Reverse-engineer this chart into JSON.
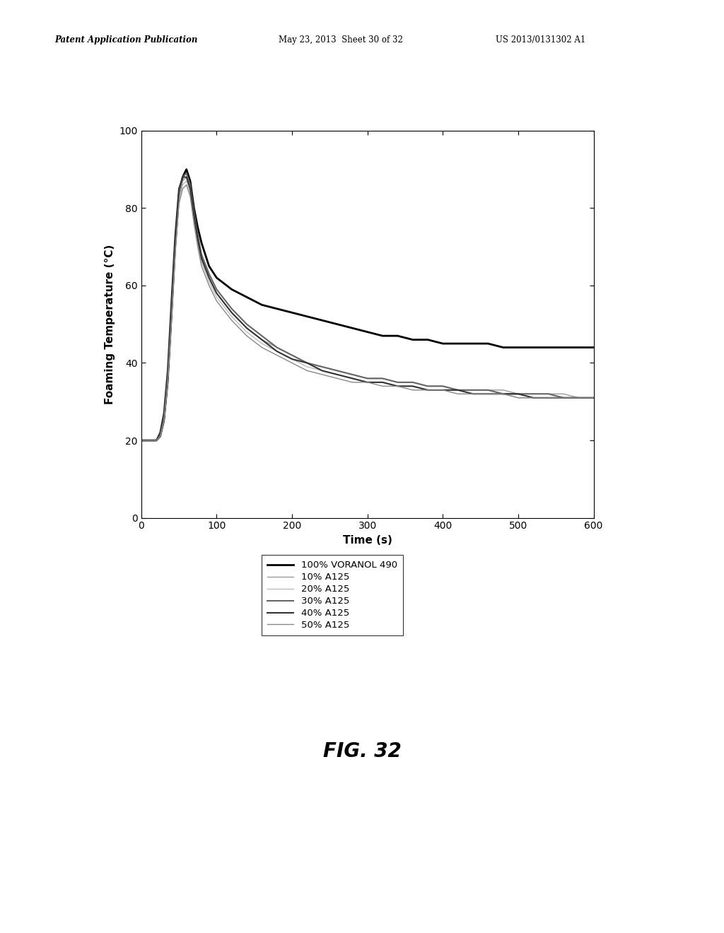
{
  "xlabel": "Time (s)",
  "ylabel": "Foaming Temperature (°C)",
  "xlim": [
    0,
    600
  ],
  "ylim": [
    0,
    100
  ],
  "xticks": [
    0,
    100,
    200,
    300,
    400,
    500,
    600
  ],
  "yticks": [
    0,
    20,
    40,
    60,
    80,
    100
  ],
  "header_left": "Patent Application Publication",
  "header_mid": "May 23, 2013  Sheet 30 of 32",
  "header_right": "US 2013/0131302 A1",
  "fig_label": "FIG. 32",
  "legend_entries": [
    {
      "label": "100% VORANOL 490",
      "color": "#000000",
      "lw": 2.0
    },
    {
      "label": "10% A125",
      "color": "#999999",
      "lw": 1.0
    },
    {
      "label": "20% A125",
      "color": "#bbbbbb",
      "lw": 1.0
    },
    {
      "label": "30% A125",
      "color": "#666666",
      "lw": 1.5
    },
    {
      "label": "40% A125",
      "color": "#333333",
      "lw": 1.5
    },
    {
      "label": "50% A125",
      "color": "#888888",
      "lw": 1.0
    }
  ],
  "background_color": "#ffffff",
  "series": [
    {
      "label": "100% VORANOL 490",
      "color": "#000000",
      "lw": 2.0,
      "t": [
        0,
        5,
        10,
        15,
        20,
        25,
        30,
        35,
        40,
        45,
        50,
        55,
        60,
        65,
        70,
        75,
        80,
        90,
        100,
        120,
        140,
        160,
        180,
        200,
        220,
        240,
        260,
        280,
        300,
        320,
        340,
        360,
        380,
        400,
        420,
        440,
        460,
        480,
        500,
        520,
        540,
        560,
        580,
        600
      ],
      "y": [
        20,
        20,
        20,
        20,
        20,
        21,
        25,
        35,
        52,
        70,
        83,
        88,
        90,
        87,
        80,
        75,
        71,
        65,
        62,
        59,
        57,
        55,
        54,
        53,
        52,
        51,
        50,
        49,
        48,
        47,
        47,
        46,
        46,
        45,
        45,
        45,
        45,
        44,
        44,
        44,
        44,
        44,
        44,
        44
      ]
    },
    {
      "label": "10% A125",
      "color": "#999999",
      "lw": 1.0,
      "t": [
        0,
        5,
        10,
        15,
        20,
        25,
        30,
        35,
        40,
        45,
        50,
        55,
        60,
        65,
        70,
        75,
        80,
        90,
        100,
        120,
        140,
        160,
        180,
        200,
        220,
        240,
        260,
        280,
        300,
        320,
        340,
        360,
        380,
        400,
        420,
        440,
        460,
        480,
        500,
        520,
        540,
        560,
        580,
        600
      ],
      "y": [
        20,
        20,
        20,
        20,
        20,
        21,
        25,
        35,
        52,
        70,
        83,
        87,
        88,
        85,
        78,
        72,
        67,
        62,
        58,
        53,
        49,
        46,
        44,
        42,
        40,
        39,
        38,
        37,
        36,
        36,
        35,
        35,
        34,
        34,
        33,
        33,
        33,
        33,
        32,
        32,
        32,
        32,
        31,
        31
      ]
    },
    {
      "label": "20% A125",
      "color": "#bbbbbb",
      "lw": 1.0,
      "t": [
        0,
        5,
        10,
        15,
        20,
        25,
        30,
        35,
        40,
        45,
        50,
        55,
        60,
        65,
        70,
        75,
        80,
        90,
        100,
        120,
        140,
        160,
        180,
        200,
        220,
        240,
        260,
        280,
        300,
        320,
        340,
        360,
        380,
        400,
        420,
        440,
        460,
        480,
        500,
        520,
        540,
        560,
        580,
        600
      ],
      "y": [
        20,
        20,
        20,
        20,
        20,
        21,
        25,
        35,
        52,
        69,
        82,
        86,
        87,
        84,
        77,
        71,
        66,
        61,
        57,
        52,
        48,
        45,
        43,
        41,
        39,
        38,
        37,
        36,
        35,
        35,
        34,
        34,
        33,
        33,
        33,
        32,
        32,
        32,
        31,
        31,
        31,
        31,
        31,
        31
      ]
    },
    {
      "label": "30% A125",
      "color": "#666666",
      "lw": 1.5,
      "t": [
        0,
        5,
        10,
        15,
        20,
        25,
        30,
        35,
        40,
        45,
        50,
        55,
        60,
        65,
        70,
        75,
        80,
        90,
        100,
        120,
        140,
        160,
        180,
        200,
        220,
        240,
        260,
        280,
        300,
        320,
        340,
        360,
        380,
        400,
        420,
        440,
        460,
        480,
        500,
        520,
        540,
        560,
        580,
        600
      ],
      "y": [
        20,
        20,
        20,
        20,
        20,
        21,
        25,
        36,
        53,
        71,
        84,
        88,
        89,
        86,
        79,
        73,
        68,
        63,
        59,
        54,
        50,
        47,
        44,
        42,
        40,
        39,
        38,
        37,
        36,
        36,
        35,
        35,
        34,
        34,
        33,
        33,
        33,
        32,
        32,
        32,
        32,
        31,
        31,
        31
      ]
    },
    {
      "label": "40% A125",
      "color": "#333333",
      "lw": 1.5,
      "t": [
        0,
        5,
        10,
        15,
        20,
        25,
        30,
        35,
        40,
        45,
        50,
        55,
        60,
        65,
        70,
        75,
        80,
        90,
        100,
        120,
        140,
        160,
        180,
        200,
        220,
        240,
        260,
        280,
        300,
        320,
        340,
        360,
        380,
        400,
        420,
        440,
        460,
        480,
        500,
        520,
        540,
        560,
        580,
        600
      ],
      "y": [
        20,
        20,
        20,
        20,
        20,
        22,
        27,
        38,
        56,
        73,
        85,
        88,
        88,
        85,
        78,
        72,
        67,
        62,
        58,
        53,
        49,
        46,
        43,
        41,
        40,
        38,
        37,
        36,
        35,
        35,
        34,
        34,
        33,
        33,
        33,
        32,
        32,
        32,
        32,
        31,
        31,
        31,
        31,
        31
      ]
    },
    {
      "label": "50% A125",
      "color": "#888888",
      "lw": 1.0,
      "t": [
        0,
        5,
        10,
        15,
        20,
        25,
        30,
        35,
        40,
        45,
        50,
        55,
        60,
        65,
        70,
        75,
        80,
        90,
        100,
        120,
        140,
        160,
        180,
        200,
        220,
        240,
        260,
        280,
        300,
        320,
        340,
        360,
        380,
        400,
        420,
        440,
        460,
        480,
        500,
        520,
        540,
        560,
        580,
        600
      ],
      "y": [
        20,
        20,
        20,
        20,
        20,
        21,
        25,
        35,
        51,
        68,
        81,
        85,
        86,
        83,
        76,
        70,
        65,
        60,
        56,
        51,
        47,
        44,
        42,
        40,
        38,
        37,
        36,
        35,
        35,
        34,
        34,
        33,
        33,
        33,
        32,
        32,
        32,
        32,
        31,
        31,
        31,
        31,
        31,
        31
      ]
    }
  ]
}
